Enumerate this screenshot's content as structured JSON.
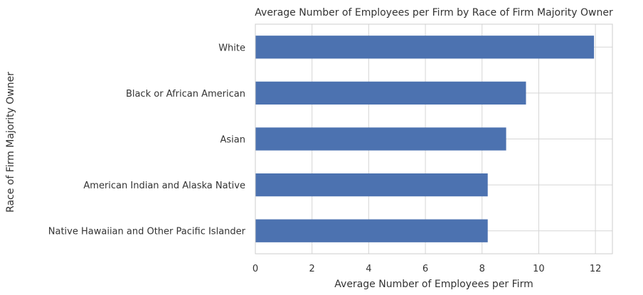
{
  "chart_data": {
    "type": "bar",
    "orientation": "horizontal",
    "title": "Average Number of Employees per Firm by Race of Firm Majority Owner",
    "xlabel": "Average Number of Employees per Firm",
    "ylabel": "Race of Firm Majority Owner",
    "categories": [
      "White",
      "Black or African American",
      "Asian",
      "American Indian and Alaska Native",
      "Native Hawaiian and Other Pacific Islander"
    ],
    "values": [
      11.95,
      9.55,
      8.85,
      8.2,
      8.2
    ],
    "xlim": [
      0,
      12.6
    ],
    "xticks": [
      "0",
      "2",
      "4",
      "6",
      "8",
      "10",
      "12"
    ],
    "grid": true,
    "bar_color": "#4c72b0",
    "grid_color": "#d5d5d5"
  }
}
